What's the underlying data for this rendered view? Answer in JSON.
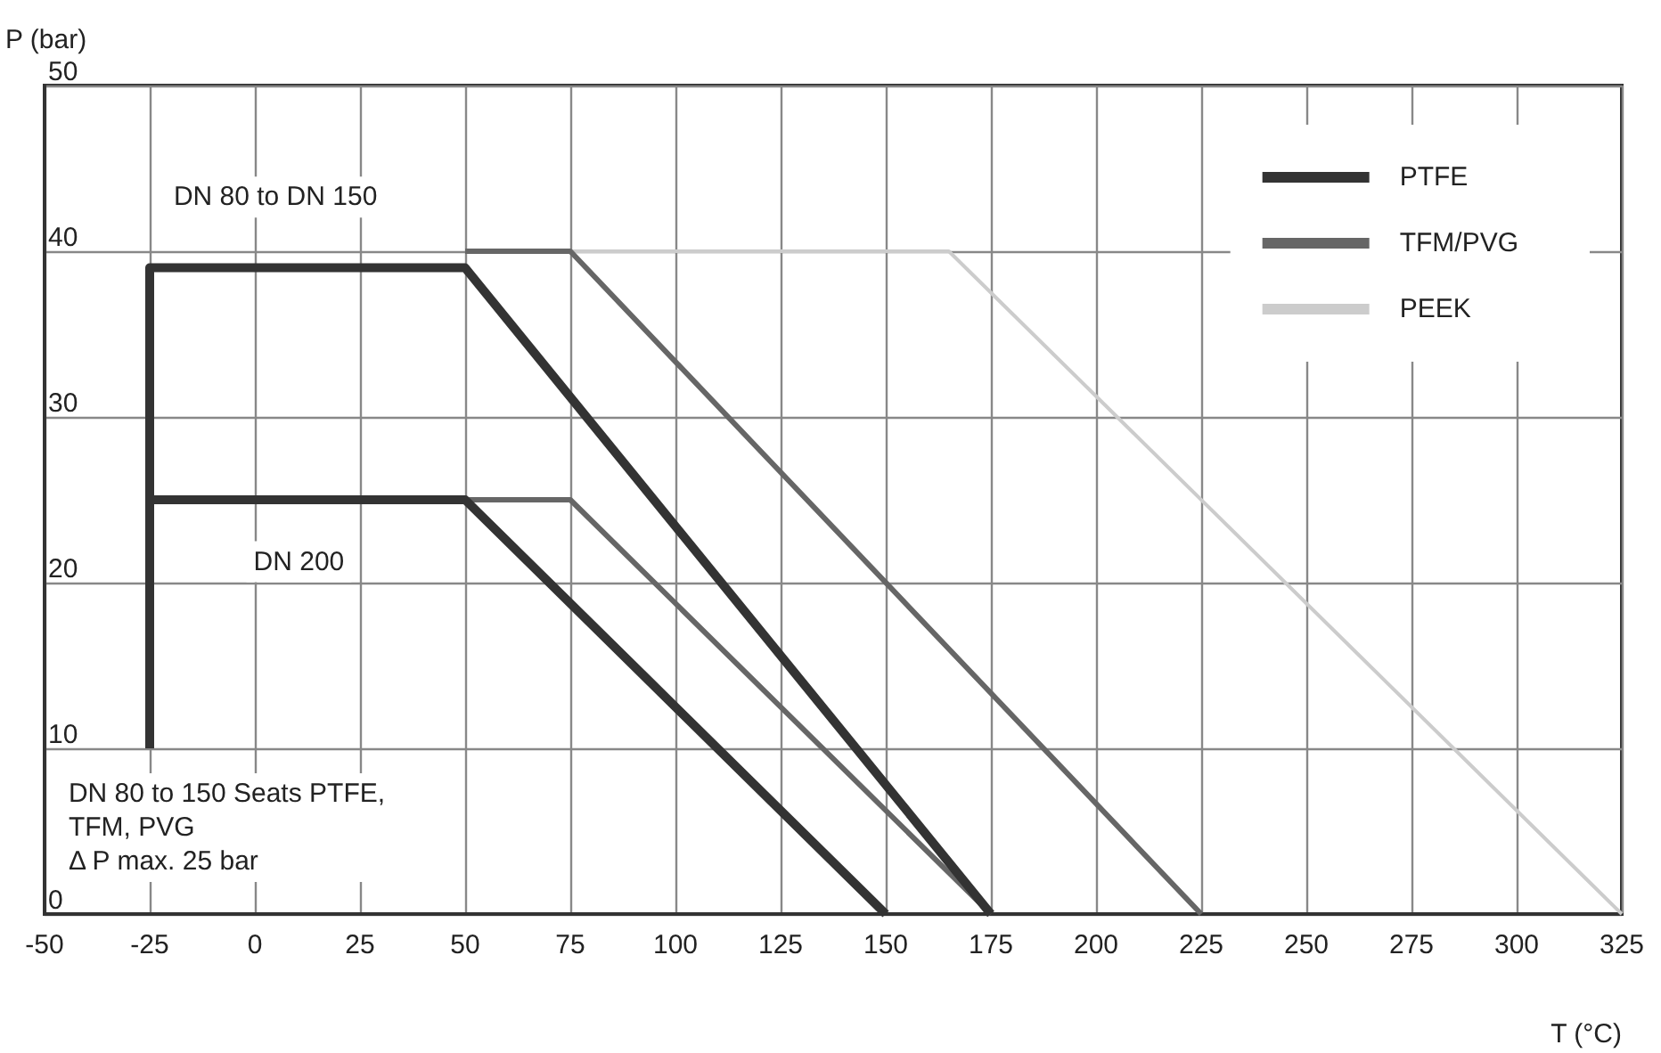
{
  "chart_data": {
    "type": "line",
    "xlabel": "T (°C)",
    "ylabel": "P (bar)",
    "xlim": [
      -50,
      325
    ],
    "xticks": [
      -50,
      -25,
      0,
      25,
      50,
      75,
      100,
      125,
      150,
      175,
      200,
      225,
      250,
      275,
      300,
      325
    ],
    "ylim": [
      0,
      50
    ],
    "yticks": [
      0,
      10,
      20,
      30,
      40,
      50
    ],
    "grid": true,
    "legend": "top right",
    "marker": "none",
    "line_style": "solid",
    "series": [
      {
        "name": "PEEK",
        "color": "#cccccc",
        "x": [
          75,
          165,
          325
        ],
        "values": [
          40,
          40,
          0
        ]
      },
      {
        "name": "TFM/PVG",
        "color": "#666666",
        "x": [
          50,
          75,
          225
        ],
        "values": [
          40,
          40,
          0
        ]
      },
      {
        "color": "#666666",
        "x": [
          50,
          75,
          175
        ],
        "values": [
          25,
          25,
          0
        ]
      },
      {
        "name": "PTFE",
        "color": "#333333",
        "x": [
          -25,
          -25,
          50,
          175
        ],
        "values": [
          10,
          39,
          39,
          0
        ]
      },
      {
        "color": "#333333",
        "x": [
          -25,
          50,
          150
        ],
        "values": [
          25,
          25,
          0
        ]
      }
    ],
    "annotations": [
      "DN 80 to DN 150",
      "DN 200",
      "DN 80 to 150 Seats PTFE,\nTFM, PVG\nΔ P max. 25 bar"
    ]
  }
}
